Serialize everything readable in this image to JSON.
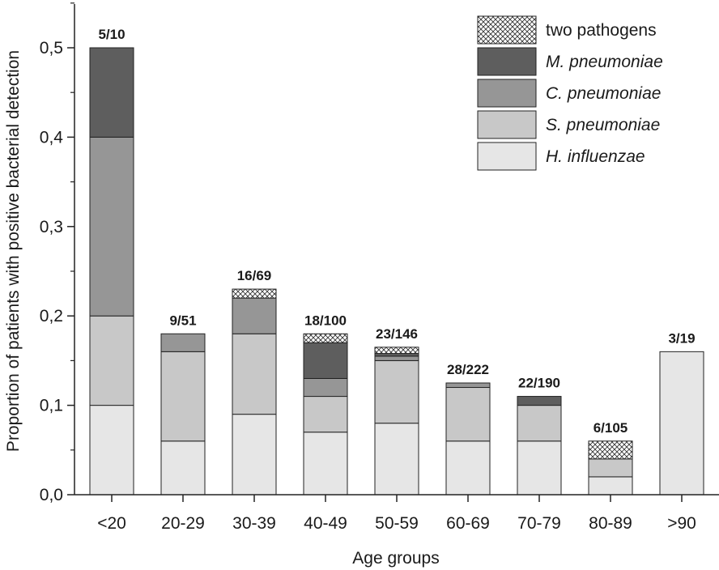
{
  "chart_data": {
    "type": "bar",
    "stacked": true,
    "xlabel": "Age groups",
    "ylabel": "Proportion of patients with positive bacterial detection",
    "ylim": [
      0,
      0.55
    ],
    "yticks": [
      "0,0",
      "0,1",
      "0,2",
      "0,3",
      "0,4",
      "0,5"
    ],
    "ytick_values": [
      0,
      0.1,
      0.2,
      0.3,
      0.4,
      0.5
    ],
    "grid": false,
    "legend_position": "top-right",
    "categories": [
      "<20",
      "20-29",
      "30-39",
      "40-49",
      "50-59",
      "60-69",
      "70-79",
      "80-89",
      ">90"
    ],
    "totals": [
      "5/10",
      "9/51",
      "16/69",
      "18/100",
      "23/146",
      "28/222",
      "22/190",
      "6/105",
      "3/19"
    ],
    "series": [
      {
        "name": "H. influenzae",
        "italic": true,
        "color": "#e6e6e6",
        "pattern": false,
        "values": [
          0.1,
          0.06,
          0.09,
          0.07,
          0.08,
          0.06,
          0.06,
          0.02,
          0.16
        ]
      },
      {
        "name": "S. pneumoniae",
        "italic": true,
        "color": "#c8c8c8",
        "pattern": false,
        "values": [
          0.1,
          0.1,
          0.09,
          0.04,
          0.07,
          0.06,
          0.04,
          0.02,
          0
        ]
      },
      {
        "name": "C. pneumoniae",
        "italic": true,
        "color": "#969696",
        "pattern": false,
        "values": [
          0.2,
          0.02,
          0.04,
          0.02,
          0.005,
          0.005,
          0,
          0,
          0
        ]
      },
      {
        "name": "M. pneumoniae",
        "italic": true,
        "color": "#5e5e5e",
        "pattern": false,
        "values": [
          0.1,
          0,
          0,
          0.04,
          0.003,
          0,
          0.01,
          0,
          0
        ]
      },
      {
        "name": "two pathogens",
        "italic": false,
        "color": "#ffffff",
        "pattern": true,
        "values": [
          0,
          0,
          0.01,
          0.01,
          0.007,
          0,
          0,
          0.02,
          0
        ]
      }
    ]
  }
}
